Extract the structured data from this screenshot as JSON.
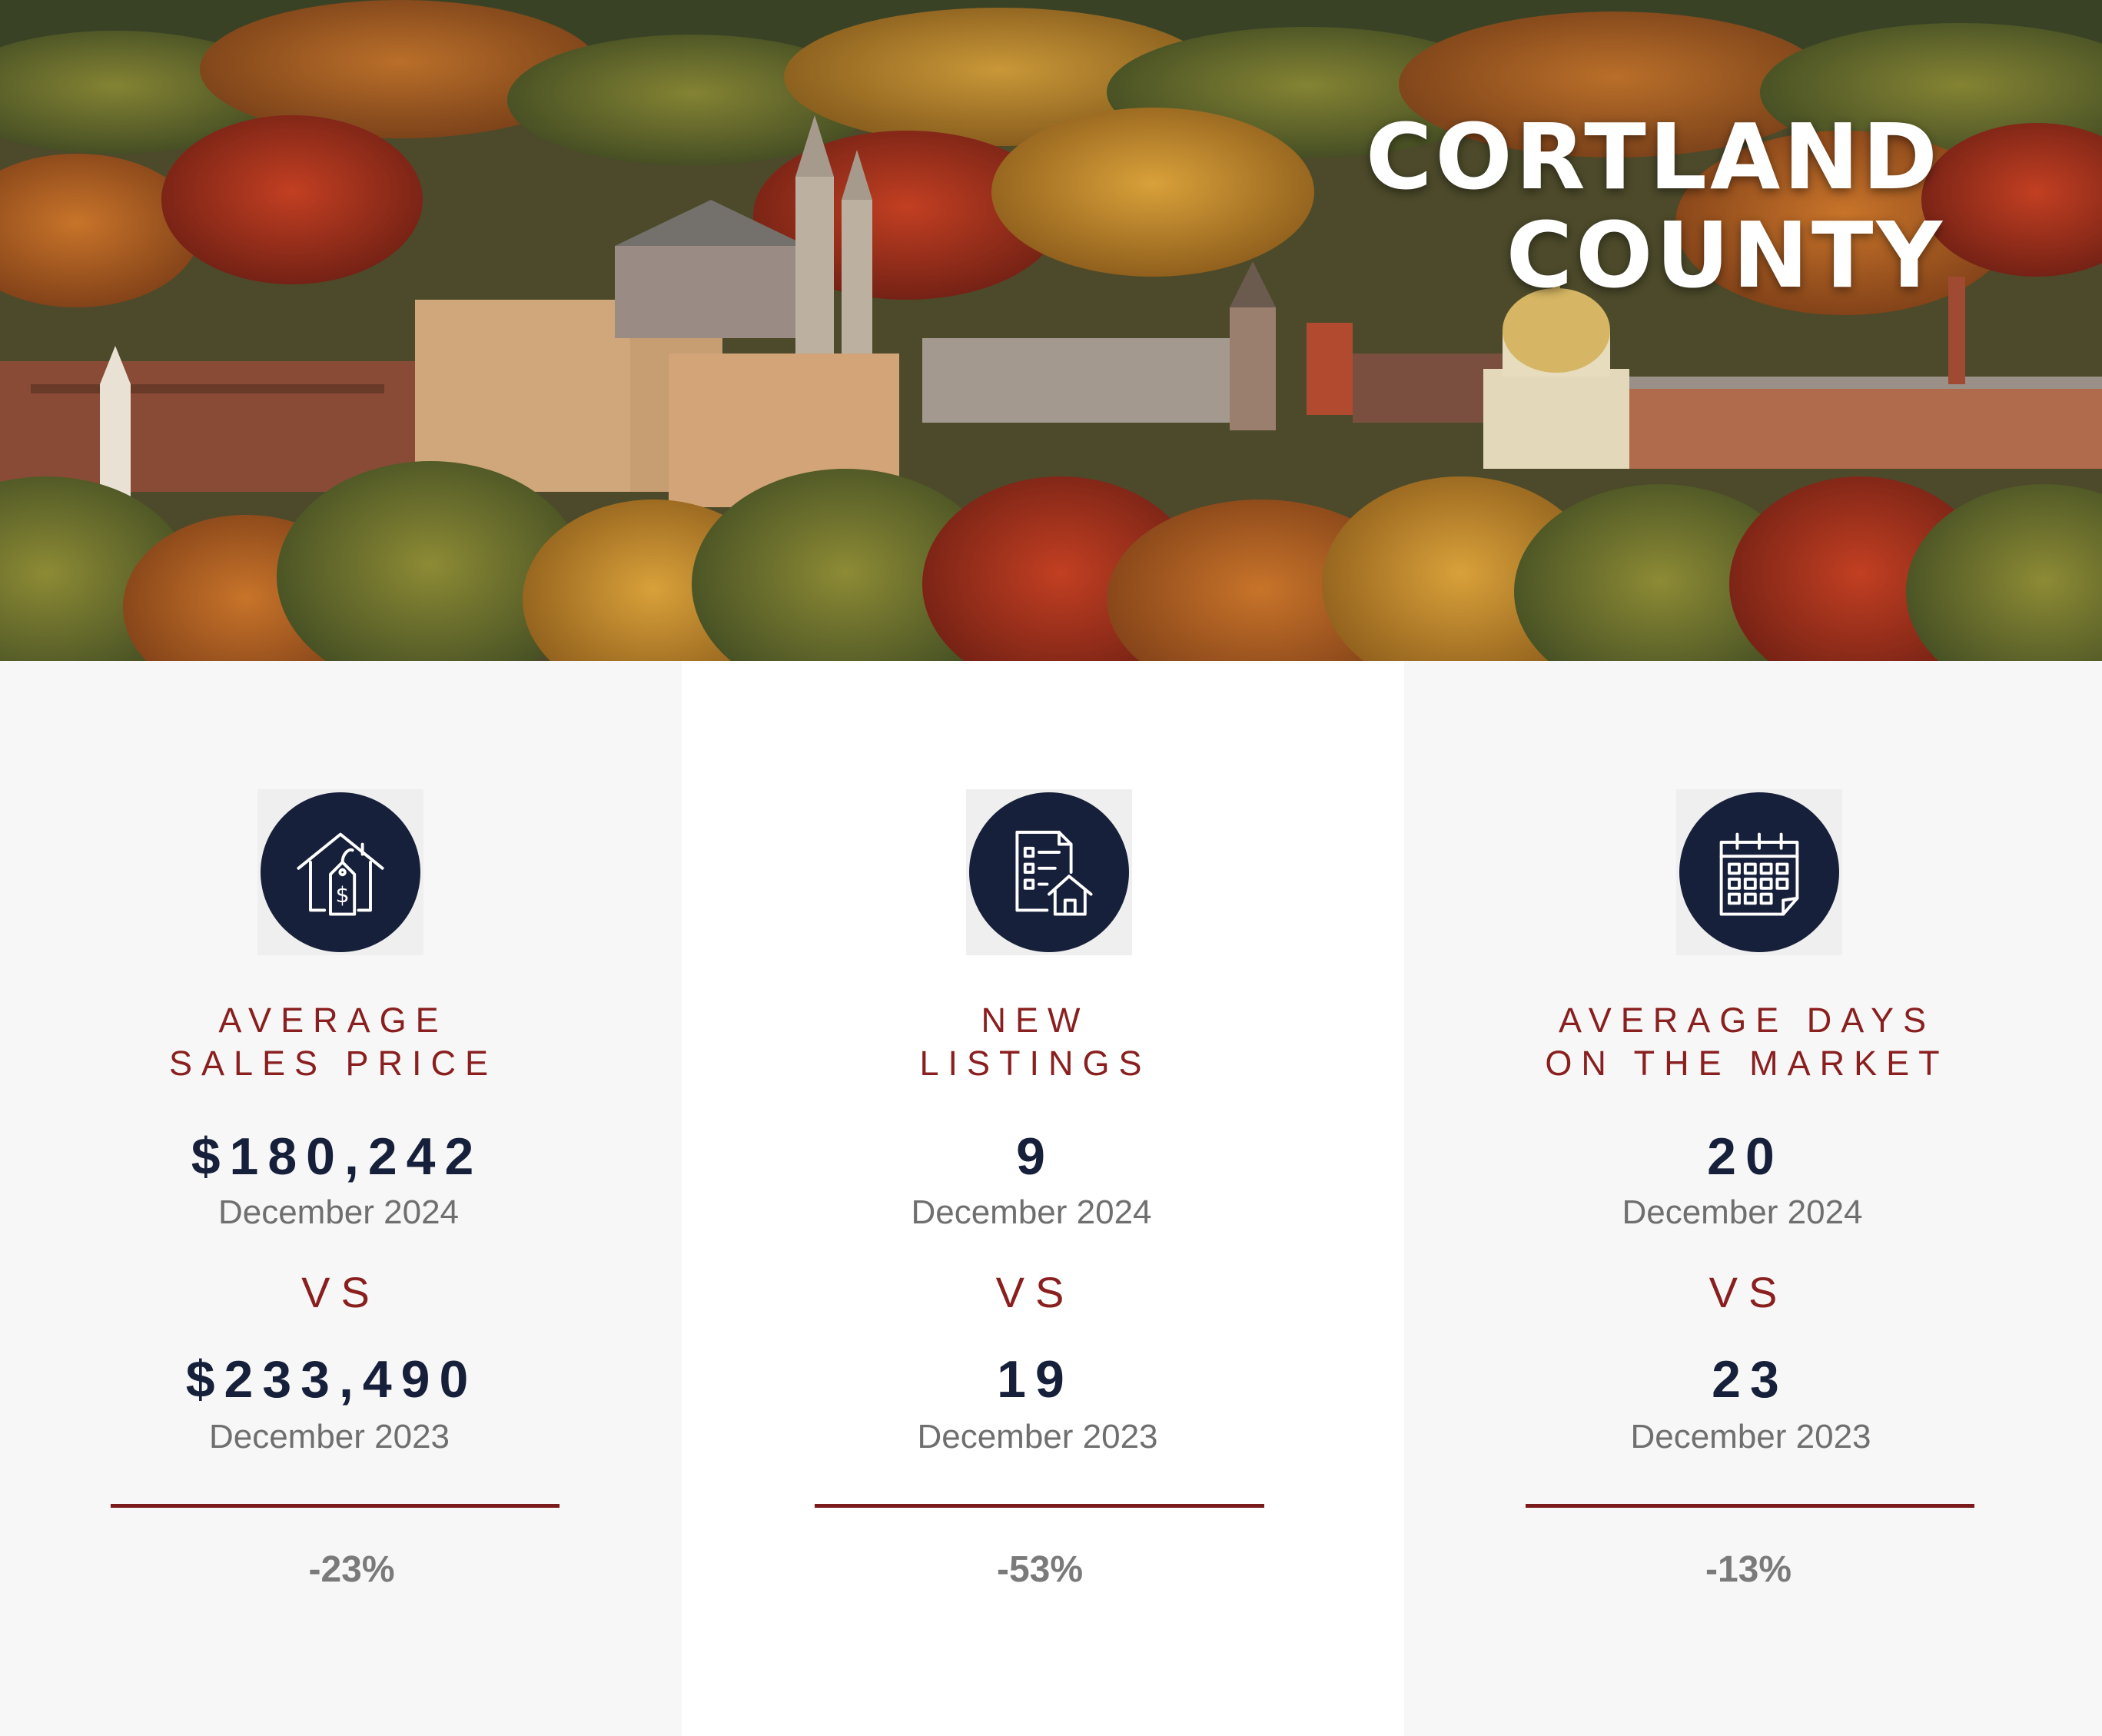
{
  "hero": {
    "title_line1": "CORTLAND",
    "title_line2": "COUNTY"
  },
  "metrics": [
    {
      "icon": "house-price-tag-icon",
      "title_line1": "AVERAGE",
      "title_line2": "SALES PRICE",
      "current_value": "$180,242",
      "current_period": "December 2024",
      "vs_label": "VS",
      "previous_value": "$233,490",
      "previous_period": "December 2023",
      "change": "-23%"
    },
    {
      "icon": "listing-document-house-icon",
      "title_line1": "NEW",
      "title_line2": "LISTINGS",
      "current_value": "9",
      "current_period": "December 2024",
      "vs_label": "VS",
      "previous_value": "19",
      "previous_period": "December 2023",
      "change": "-53%"
    },
    {
      "icon": "calendar-icon",
      "title_line1": "AVERAGE DAYS",
      "title_line2": "ON THE MARKET",
      "current_value": "20",
      "current_period": "December 2024",
      "vs_label": "VS",
      "previous_value": "23",
      "previous_period": "December 2023",
      "change": "-13%"
    }
  ],
  "colors": {
    "navy": "#17203a",
    "maroon": "#8a1f1f",
    "gray_text": "#6f6f6f"
  }
}
